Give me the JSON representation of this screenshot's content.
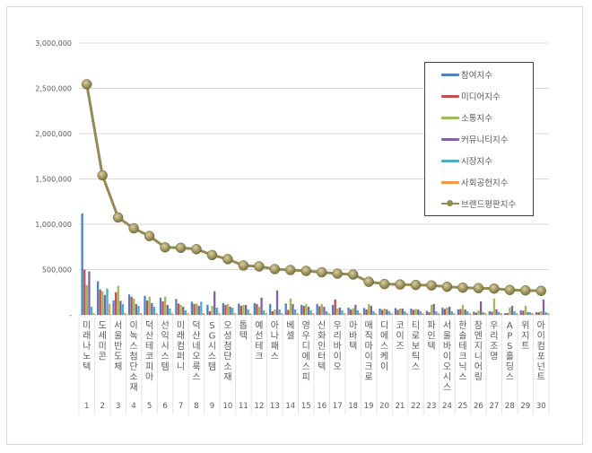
{
  "chart_data": {
    "type": "bar+line",
    "title": "",
    "xlabel": "",
    "ylabel": "",
    "ylim": [
      0,
      3000000
    ],
    "yticks": [
      "-",
      "500,000",
      "1,000,000",
      "1,500,000",
      "2,000,000",
      "2,500,000",
      "3,000,000"
    ],
    "grid": true,
    "legend_position": "upper-right (inside plot)",
    "categories": [
      "미래나노텍",
      "도세미콘",
      "서울반도체",
      "이녹스첨단소재",
      "덕산테코피아",
      "선익시스템",
      "미래컴퍼니",
      "덕산네오룩스",
      "SG시스템",
      "오성첨단소재",
      "톱텍",
      "예선테크",
      "아나패스",
      "베셀",
      "영우디에스피",
      "신화인터텍",
      "우리바이오",
      "아바텍",
      "매직마이크로",
      "디에스케이",
      "코이즈",
      "티로보틱스",
      "파인텍",
      "서울바이오시스",
      "한솔테크닉스",
      "참엔지니어링",
      "우리조명",
      "APS홀딩스",
      "위지트",
      "아이컴포넌트"
    ],
    "ranks": [
      "1",
      "2",
      "3",
      "4",
      "5",
      "6",
      "7",
      "8",
      "9",
      "10",
      "11",
      "12",
      "13",
      "14",
      "15",
      "16",
      "17",
      "18",
      "19",
      "20",
      "21",
      "22",
      "23",
      "24",
      "25",
      "26",
      "27",
      "28",
      "29",
      "30"
    ],
    "series": [
      {
        "name": "참여지수",
        "type": "bar",
        "color": "#4f81bd",
        "values": [
          1120000,
          370000,
          160000,
          225000,
          210000,
          190000,
          175000,
          145000,
          110000,
          130000,
          125000,
          130000,
          120000,
          125000,
          110000,
          120000,
          110000,
          80000,
          75000,
          70000,
          75000,
          70000,
          45000,
          80000,
          60000,
          35000,
          40000,
          20000,
          50000,
          30000
        ]
      },
      {
        "name": "미디어지수",
        "type": "bar",
        "color": "#c0504d",
        "values": [
          500000,
          280000,
          250000,
          200000,
          160000,
          150000,
          125000,
          120000,
          40000,
          110000,
          100000,
          120000,
          40000,
          55000,
          100000,
          95000,
          170000,
          60000,
          60000,
          55000,
          55000,
          55000,
          30000,
          65000,
          65000,
          25000,
          35000,
          20000,
          45000,
          30000
        ]
      },
      {
        "name": "소통지수",
        "type": "bar",
        "color": "#9bbb59",
        "values": [
          330000,
          260000,
          320000,
          180000,
          200000,
          200000,
          110000,
          125000,
          100000,
          120000,
          110000,
          90000,
          60000,
          180000,
          120000,
          120000,
          70000,
          75000,
          120000,
          70000,
          70000,
          65000,
          110000,
          80000,
          110000,
          50000,
          180000,
          80000,
          100000,
          40000
        ]
      },
      {
        "name": "커뮤니티지수",
        "type": "bar",
        "color": "#8064a2",
        "values": [
          480000,
          220000,
          155000,
          120000,
          130000,
          110000,
          90000,
          100000,
          260000,
          90000,
          110000,
          190000,
          270000,
          120000,
          90000,
          90000,
          80000,
          110000,
          100000,
          60000,
          70000,
          60000,
          120000,
          90000,
          60000,
          150000,
          60000,
          100000,
          30000,
          170000
        ]
      },
      {
        "name": "시장지수",
        "type": "bar",
        "color": "#4bacc6",
        "values": [
          90000,
          290000,
          120000,
          100000,
          90000,
          70000,
          50000,
          145000,
          80000,
          80000,
          60000,
          50000,
          60000,
          60000,
          50000,
          40000,
          50000,
          50000,
          40000,
          40000,
          40000,
          40000,
          40000,
          40000,
          40000,
          30000,
          30000,
          40000,
          30000,
          30000
        ]
      },
      {
        "name": "사회공헌지수",
        "type": "bar",
        "color": "#f79646",
        "values": [
          20000,
          120000,
          20000,
          20000,
          20000,
          20000,
          20000,
          20000,
          20000,
          20000,
          20000,
          20000,
          20000,
          20000,
          20000,
          20000,
          20000,
          20000,
          20000,
          20000,
          20000,
          20000,
          20000,
          20000,
          20000,
          20000,
          20000,
          20000,
          20000,
          20000
        ]
      },
      {
        "name": "브랜드평판지수",
        "type": "line",
        "color": "#948a54",
        "values": [
          2545000,
          1540000,
          1075000,
          955000,
          870000,
          745000,
          740000,
          725000,
          660000,
          615000,
          545000,
          535000,
          505000,
          495000,
          485000,
          470000,
          455000,
          445000,
          365000,
          340000,
          335000,
          330000,
          325000,
          310000,
          300000,
          295000,
          290000,
          275000,
          270000,
          265000
        ]
      }
    ]
  },
  "legend": {
    "items": [
      {
        "label": "참여지수",
        "color": "#4f81bd"
      },
      {
        "label": "미디어지수",
        "color": "#c0504d"
      },
      {
        "label": "소통지수",
        "color": "#9bbb59"
      },
      {
        "label": "커뮤니티지수",
        "color": "#8064a2"
      },
      {
        "label": "시장지수",
        "color": "#4bacc6"
      },
      {
        "label": "사회공헌지수",
        "color": "#f79646"
      },
      {
        "label": "브랜드평판지수",
        "color": "#948a54"
      }
    ]
  }
}
